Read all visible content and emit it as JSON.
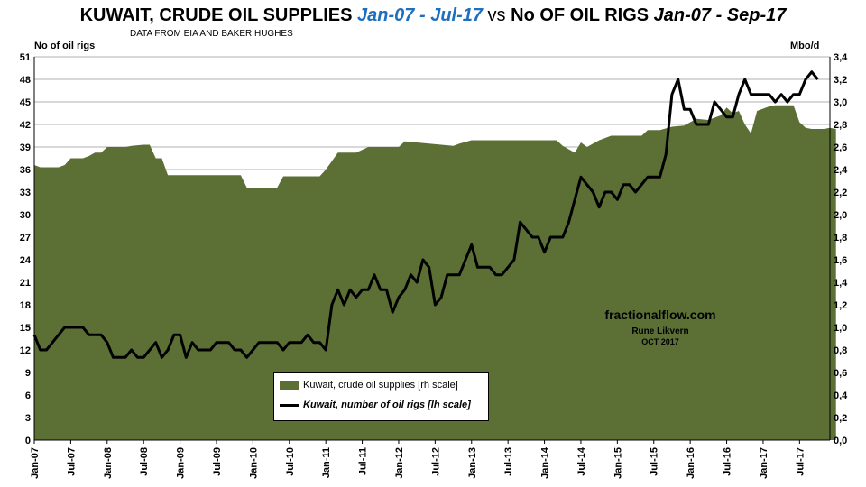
{
  "header": {
    "title_part1": "KUWAIT, CRUDE OIL SUPPLIES ",
    "title_range1": "Jan-07 - Jul-17",
    "title_vs": " vs ",
    "title_part2": "No OF OIL RIGS ",
    "title_range2": "Jan-07 - Sep-17",
    "subtitle": "DATA FROM EIA AND BAKER HUGHES"
  },
  "annotation": {
    "site": "fractionalflow.com",
    "author": "Rune Likvern",
    "date": "OCT 2017"
  },
  "colors": {
    "area": "#5c7036",
    "line": "#000000",
    "title_accent": "#1f6fbf",
    "grid": "#b0b0b0"
  },
  "chart_data": {
    "type": "area",
    "ylabel_left": "No of  oil rigs",
    "ylabel_right": "Mbo/d",
    "yleft_range": [
      0,
      51
    ],
    "yleft_ticks": [
      "0",
      "3",
      "6",
      "9",
      "12",
      "15",
      "18",
      "21",
      "24",
      "27",
      "30",
      "33",
      "36",
      "39",
      "42",
      "45",
      "48",
      "51"
    ],
    "yright_range": [
      0,
      3.4
    ],
    "yright_ticks": [
      "0,0",
      "0,2",
      "0,4",
      "0,6",
      "0,8",
      "1,0",
      "1,2",
      "1,4",
      "1,6",
      "1,8",
      "2,0",
      "2,2",
      "2,4",
      "2,6",
      "2,8",
      "3,0",
      "3,2",
      "3,4"
    ],
    "x_ticks": [
      "Jan-07",
      "Jul-07",
      "Jan-08",
      "Jul-08",
      "Jan-09",
      "Jul-09",
      "Jan-10",
      "Jul-10",
      "Jan-11",
      "Jul-11",
      "Jan-12",
      "Jul-12",
      "Jan-13",
      "Jul-13",
      "Jan-14",
      "Jul-14",
      "Jan-15",
      "Jul-15",
      "Jan-16",
      "Jul-16",
      "Jan-17",
      "Jul-17"
    ],
    "grid": true,
    "legend_position": "bottom-center",
    "series": [
      {
        "name": "Kuwait, crude oil supplies [rh scale]",
        "axis": "right",
        "style": "area",
        "points": [
          [
            0,
            2.44
          ],
          [
            1,
            2.42
          ],
          [
            2,
            2.42
          ],
          [
            4,
            2.42
          ],
          [
            5,
            2.44
          ],
          [
            6,
            2.5
          ],
          [
            8,
            2.5
          ],
          [
            9,
            2.52
          ],
          [
            10,
            2.55
          ],
          [
            11,
            2.55
          ],
          [
            12,
            2.6
          ],
          [
            15,
            2.6
          ],
          [
            16,
            2.61
          ],
          [
            18,
            2.62
          ],
          [
            19,
            2.62
          ],
          [
            20,
            2.5
          ],
          [
            21,
            2.5
          ],
          [
            22,
            2.35
          ],
          [
            34,
            2.35
          ],
          [
            35,
            2.24
          ],
          [
            40,
            2.24
          ],
          [
            41,
            2.34
          ],
          [
            47,
            2.34
          ],
          [
            48,
            2.4
          ],
          [
            50,
            2.55
          ],
          [
            53,
            2.55
          ],
          [
            55,
            2.6
          ],
          [
            60,
            2.6
          ],
          [
            61,
            2.65
          ],
          [
            63,
            2.64
          ],
          [
            67,
            2.62
          ],
          [
            69,
            2.61
          ],
          [
            70,
            2.63
          ],
          [
            72,
            2.66
          ],
          [
            86,
            2.66
          ],
          [
            87,
            2.61
          ],
          [
            89,
            2.55
          ],
          [
            90,
            2.64
          ],
          [
            91,
            2.6
          ],
          [
            93,
            2.66
          ],
          [
            95,
            2.7
          ],
          [
            100,
            2.7
          ],
          [
            101,
            2.75
          ],
          [
            103,
            2.75
          ],
          [
            105,
            2.78
          ],
          [
            107,
            2.79
          ],
          [
            109,
            2.85
          ],
          [
            111,
            2.84
          ],
          [
            113,
            2.88
          ],
          [
            114,
            2.95
          ],
          [
            115,
            2.9
          ],
          [
            116,
            2.92
          ],
          [
            117,
            2.8
          ],
          [
            118,
            2.72
          ],
          [
            119,
            2.92
          ],
          [
            121,
            2.96
          ],
          [
            122,
            2.97
          ],
          [
            124,
            2.97
          ],
          [
            125,
            2.97
          ],
          [
            126,
            2.82
          ],
          [
            127,
            2.77
          ],
          [
            128,
            2.76
          ],
          [
            130,
            2.76
          ],
          [
            131,
            2.77
          ],
          [
            132,
            2.76
          ]
        ]
      },
      {
        "name": "Kuwait, number of oil rigs [lh scale]",
        "axis": "left",
        "style": "line",
        "points": [
          [
            0,
            14
          ],
          [
            1,
            12
          ],
          [
            2,
            12
          ],
          [
            3,
            13
          ],
          [
            4,
            14
          ],
          [
            5,
            15
          ],
          [
            8,
            15
          ],
          [
            9,
            14
          ],
          [
            11,
            14
          ],
          [
            12,
            13
          ],
          [
            13,
            11
          ],
          [
            15,
            11
          ],
          [
            16,
            12
          ],
          [
            17,
            11
          ],
          [
            18,
            11
          ],
          [
            20,
            13
          ],
          [
            21,
            11
          ],
          [
            22,
            12
          ],
          [
            23,
            14
          ],
          [
            24,
            14
          ],
          [
            25,
            11
          ],
          [
            26,
            13
          ],
          [
            27,
            12
          ],
          [
            29,
            12
          ],
          [
            30,
            13
          ],
          [
            32,
            13
          ],
          [
            33,
            12
          ],
          [
            34,
            12
          ],
          [
            35,
            11
          ],
          [
            36,
            12
          ],
          [
            37,
            13
          ],
          [
            40,
            13
          ],
          [
            41,
            12
          ],
          [
            42,
            13
          ],
          [
            44,
            13
          ],
          [
            45,
            14
          ],
          [
            46,
            13
          ],
          [
            47,
            13
          ],
          [
            48,
            12
          ],
          [
            49,
            18
          ],
          [
            50,
            20
          ],
          [
            51,
            18
          ],
          [
            52,
            20
          ],
          [
            53,
            19
          ],
          [
            54,
            20
          ],
          [
            55,
            20
          ],
          [
            56,
            22
          ],
          [
            57,
            20
          ],
          [
            58,
            20
          ],
          [
            59,
            17
          ],
          [
            60,
            19
          ],
          [
            61,
            20
          ],
          [
            62,
            22
          ],
          [
            63,
            21
          ],
          [
            64,
            24
          ],
          [
            65,
            23
          ],
          [
            66,
            18
          ],
          [
            67,
            19
          ],
          [
            68,
            22
          ],
          [
            70,
            22
          ],
          [
            71,
            24
          ],
          [
            72,
            26
          ],
          [
            73,
            23
          ],
          [
            75,
            23
          ],
          [
            76,
            22
          ],
          [
            77,
            22
          ],
          [
            78,
            23
          ],
          [
            79,
            24
          ],
          [
            80,
            29
          ],
          [
            81,
            28
          ],
          [
            82,
            27
          ],
          [
            83,
            27
          ],
          [
            84,
            25
          ],
          [
            85,
            27
          ],
          [
            87,
            27
          ],
          [
            88,
            29
          ],
          [
            89,
            32
          ],
          [
            90,
            35
          ],
          [
            91,
            34
          ],
          [
            92,
            33
          ],
          [
            93,
            31
          ],
          [
            94,
            33
          ],
          [
            95,
            33
          ],
          [
            96,
            32
          ],
          [
            97,
            34
          ],
          [
            98,
            34
          ],
          [
            99,
            33
          ],
          [
            101,
            35
          ],
          [
            103,
            35
          ],
          [
            104,
            38
          ],
          [
            105,
            46
          ],
          [
            106,
            48
          ],
          [
            107,
            44
          ],
          [
            108,
            44
          ],
          [
            109,
            42
          ],
          [
            111,
            42
          ],
          [
            112,
            45
          ],
          [
            113,
            44
          ],
          [
            114,
            43
          ],
          [
            115,
            43
          ],
          [
            116,
            46
          ],
          [
            117,
            48
          ],
          [
            118,
            46
          ],
          [
            121,
            46
          ],
          [
            122,
            45
          ],
          [
            123,
            46
          ],
          [
            124,
            45
          ],
          [
            125,
            46
          ],
          [
            126,
            46
          ],
          [
            127,
            48
          ],
          [
            128,
            49
          ],
          [
            129,
            48
          ]
        ]
      }
    ]
  }
}
